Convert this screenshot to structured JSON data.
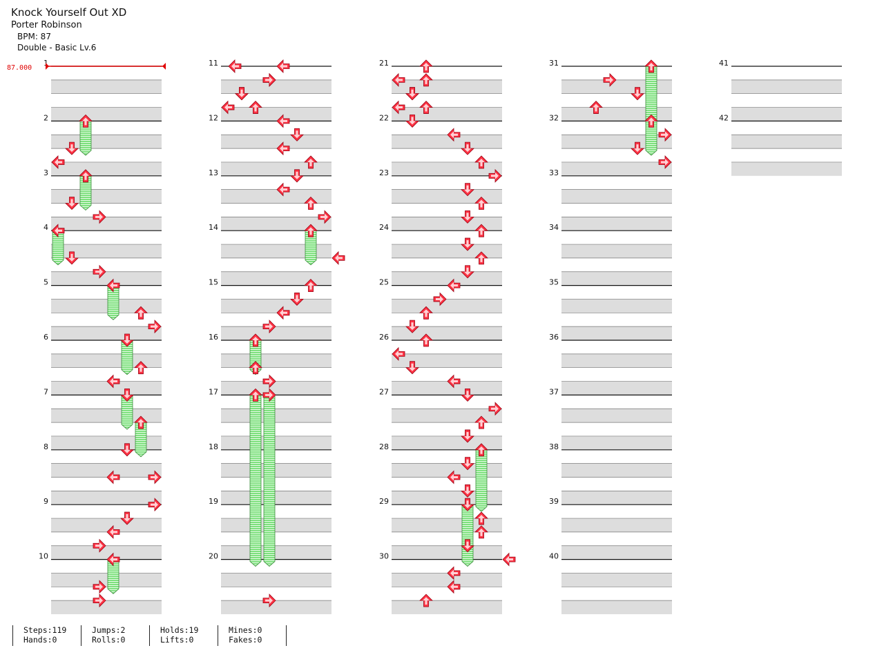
{
  "song": {
    "title": "Knock Yourself Out XD",
    "artist": "Porter Robinson",
    "bpm_text": "BPM: 87",
    "chart_text": "Double - Basic Lv.6"
  },
  "bpm_marker": "87.000",
  "lanes": 8,
  "total_measures": 42,
  "colors": {
    "arrow": "#ff3344",
    "hold": "#7de07d",
    "band": "#dddddd",
    "bpm": "#e00000"
  },
  "notes": [
    [
      1.0,
      4,
      "hold",
      1.5
    ],
    [
      1.5,
      2,
      "tap"
    ],
    [
      1.75,
      0,
      "tap"
    ],
    [
      2.0,
      4,
      "hold",
      2.5
    ],
    [
      2.5,
      2,
      "tap"
    ],
    [
      2.75,
      6,
      "tap"
    ],
    [
      3.0,
      0,
      "hold",
      3.5
    ],
    [
      3.5,
      2,
      "tap"
    ],
    [
      3.75,
      6,
      "tap"
    ],
    [
      4.0,
      8,
      "hold",
      4.5
    ],
    [
      4.5,
      12,
      "tap"
    ],
    [
      4.75,
      14,
      "tap"
    ],
    [
      5.0,
      10,
      "hold",
      5.5
    ],
    [
      5.5,
      12,
      "tap"
    ],
    [
      5.75,
      8,
      "tap"
    ],
    [
      6.0,
      10,
      "hold",
      6.5
    ],
    [
      6.5,
      12,
      "hold",
      7.0
    ],
    [
      7.0,
      10,
      "tap"
    ],
    [
      7.5,
      8,
      "tap"
    ],
    [
      7.5,
      14,
      "tap"
    ],
    [
      8.0,
      14,
      "tap"
    ],
    [
      8.25,
      10,
      "tap"
    ],
    [
      8.5,
      8,
      "tap"
    ],
    [
      8.75,
      6,
      "tap"
    ],
    [
      9.0,
      8,
      "hold",
      9.5
    ],
    [
      9.5,
      6,
      "tap"
    ],
    [
      9.75,
      6,
      "tap"
    ],
    [
      10.0,
      8,
      "tap"
    ],
    [
      10.25,
      6,
      "tap"
    ],
    [
      10.5,
      2,
      "tap"
    ],
    [
      10.75,
      0,
      "tap"
    ],
    [
      0.0,
      1,
      "tap"
    ],
    [
      0.25,
      6,
      "tap"
    ],
    [
      0.5,
      2,
      "tap"
    ],
    [
      0.75,
      4,
      "tap"
    ],
    [
      1.0,
      8,
      "tap"
    ],
    [
      1.25,
      10,
      "tap"
    ],
    [
      1.5,
      8,
      "tap"
    ],
    [
      1.75,
      12,
      "tap"
    ],
    [
      2.0,
      10,
      "tap"
    ],
    [
      2.25,
      8,
      "tap"
    ],
    [
      2.5,
      12,
      "tap"
    ],
    [
      2.75,
      14,
      "tap"
    ],
    [
      3.0,
      12,
      "hold",
      3.5
    ],
    [
      3.5,
      16,
      "tap"
    ],
    [
      4.0,
      12,
      "tap"
    ],
    [
      4.25,
      10,
      "tap"
    ],
    [
      4.5,
      8,
      "tap"
    ],
    [
      4.75,
      6,
      "tap"
    ],
    [
      5.0,
      4,
      "hold",
      5.5
    ],
    [
      5.5,
      4,
      "tap"
    ],
    [
      5.75,
      6,
      "tap"
    ],
    [
      6.0,
      4,
      "hold",
      9.0
    ],
    [
      6.0,
      6,
      "hold",
      9.0
    ],
    [
      9.75,
      6,
      "tap"
    ],
    [
      10.25,
      4,
      "tap"
    ],
    [
      10.5,
      2,
      "tap"
    ],
    [
      10.75,
      0,
      "tap"
    ],
    [
      0.0,
      4,
      "tap"
    ],
    [
      0.25,
      0,
      "tap"
    ],
    [
      0.5,
      2,
      "tap"
    ],
    [
      0.75,
      4,
      "tap"
    ],
    [
      1.0,
      2,
      "tap"
    ],
    [
      1.25,
      8,
      "tap"
    ],
    [
      1.5,
      10,
      "tap"
    ],
    [
      1.75,
      12,
      "tap"
    ],
    [
      2.0,
      14,
      "tap"
    ],
    [
      2.25,
      10,
      "tap"
    ],
    [
      2.5,
      12,
      "tap"
    ],
    [
      2.75,
      10,
      "tap"
    ],
    [
      3.0,
      12,
      "tap"
    ],
    [
      3.25,
      10,
      "tap"
    ],
    [
      3.5,
      12,
      "tap"
    ],
    [
      3.75,
      10,
      "tap"
    ],
    [
      4.0,
      8,
      "tap"
    ],
    [
      4.25,
      6,
      "tap"
    ],
    [
      4.5,
      4,
      "tap"
    ],
    [
      4.75,
      2,
      "tap"
    ],
    [
      5.0,
      4,
      "tap"
    ],
    [
      5.25,
      0,
      "tap"
    ],
    [
      5.5,
      2,
      "tap"
    ],
    [
      5.75,
      8,
      "tap"
    ],
    [
      6.0,
      10,
      "tap"
    ],
    [
      6.25,
      14,
      "tap"
    ],
    [
      6.5,
      12,
      "tap"
    ],
    [
      6.75,
      10,
      "tap"
    ],
    [
      7.0,
      12,
      "hold",
      8.0
    ],
    [
      7.25,
      10,
      "tap"
    ],
    [
      7.5,
      8,
      "tap"
    ],
    [
      7.75,
      10,
      "tap"
    ],
    [
      8.0,
      10,
      "hold",
      9.0
    ],
    [
      8.25,
      12,
      "tap"
    ],
    [
      8.5,
      12,
      "tap"
    ],
    [
      8.75,
      10,
      "tap"
    ],
    [
      9.0,
      16,
      "tap"
    ],
    [
      9.25,
      8,
      "tap"
    ],
    [
      9.5,
      8,
      "tap"
    ],
    [
      9.75,
      4,
      "tap"
    ],
    [
      10.0,
      12,
      "hold",
      11.0
    ],
    [
      10.25,
      6,
      "tap"
    ],
    [
      10.5,
      10,
      "tap"
    ],
    [
      10.75,
      4,
      "tap"
    ],
    [
      11.0,
      12,
      "hold",
      11.5
    ],
    [
      11.25,
      14,
      "tap"
    ],
    [
      11.5,
      10,
      "tap"
    ],
    [
      11.75,
      14,
      "tap"
    ]
  ],
  "stats": [
    [
      "Steps:119",
      "Hands:0"
    ],
    [
      "Jumps:2",
      "Rolls:0"
    ],
    [
      "Holds:19",
      "Lifts:0"
    ],
    [
      "Mines:0",
      "Fakes:0"
    ]
  ]
}
